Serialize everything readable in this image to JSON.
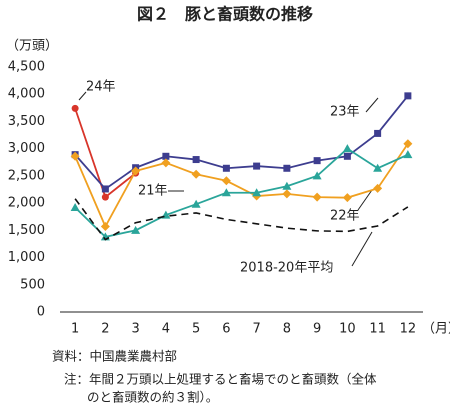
{
  "chart_data": {
    "type": "line",
    "title": "図２　豚と畜頭数の推移",
    "y_label": "（万頭）",
    "x_label": "（月）",
    "categories": [
      "1",
      "2",
      "3",
      "4",
      "5",
      "6",
      "7",
      "8",
      "9",
      "10",
      "11",
      "12"
    ],
    "ylim": [
      0,
      4500
    ],
    "yticks": [
      0,
      500,
      {
        "value": 1000,
        "label": "1,000"
      },
      {
        "value": 1500,
        "label": "1,500"
      },
      {
        "value": 2000,
        "label": "2,000"
      },
      {
        "value": 2500,
        "label": "2,500"
      },
      {
        "value": 3000,
        "label": "3,000"
      },
      {
        "value": 3500,
        "label": "3,500"
      },
      {
        "value": 4000,
        "label": "4,000"
      },
      {
        "value": 4500,
        "label": "4,500"
      }
    ],
    "grid": false,
    "series": [
      {
        "name": "24年",
        "color": "#d8352a",
        "marker": "circle",
        "dashed": false,
        "values": [
          3740,
          2110,
          2550,
          null,
          null,
          null,
          null,
          null,
          null,
          null,
          null,
          null
        ]
      },
      {
        "name": "23年",
        "color": "#3d3d8f",
        "marker": "square",
        "dashed": false,
        "values": [
          2890,
          2260,
          2650,
          2860,
          2800,
          2640,
          2680,
          2640,
          2780,
          2860,
          3280,
          3970
        ]
      },
      {
        "name": "22年",
        "color": "#f0a020",
        "marker": "diamond",
        "dashed": false,
        "values": [
          2860,
          1570,
          2590,
          2740,
          2530,
          2410,
          2130,
          2170,
          2110,
          2100,
          2270,
          3090
        ]
      },
      {
        "name": "21年",
        "color": "#2aa59a",
        "marker": "triangle",
        "dashed": false,
        "values": [
          1920,
          1380,
          1500,
          1780,
          1980,
          2190,
          2190,
          2310,
          2500,
          3000,
          2640,
          2890
        ]
      },
      {
        "name": "2018-20年平均",
        "color": "#111111",
        "marker": null,
        "dashed": true,
        "values": [
          2080,
          1330,
          1640,
          1760,
          1820,
          1700,
          1620,
          1540,
          1490,
          1480,
          1580,
          1930
        ]
      }
    ],
    "source": "資料：中国農業農村部",
    "note_lines": [
      "注：年間２万頭以上処理すると畜場でのと畜頭数（全体",
      "のと畜頭数の約３割）。"
    ]
  }
}
